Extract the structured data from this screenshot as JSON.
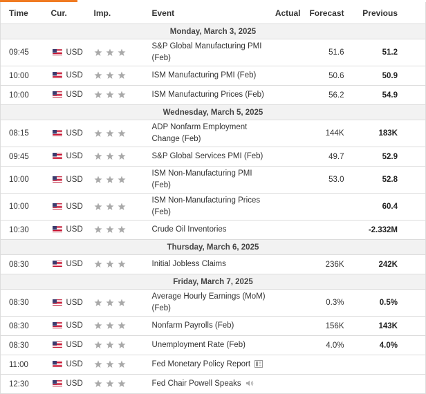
{
  "header": {
    "time": "Time",
    "currency": "Cur.",
    "importance": "Imp.",
    "event": "Event",
    "actual": "Actual",
    "forecast": "Forecast",
    "previous": "Previous"
  },
  "days": [
    {
      "date": "Monday, March 3, 2025",
      "events": [
        {
          "time": "09:45",
          "currency": "USD",
          "event": "S&P Global Manufacturing PMI (Feb)",
          "forecast": "51.6",
          "previous": "51.2"
        },
        {
          "time": "10:00",
          "currency": "USD",
          "event": "ISM Manufacturing PMI (Feb)",
          "forecast": "50.6",
          "previous": "50.9"
        },
        {
          "time": "10:00",
          "currency": "USD",
          "event": "ISM Manufacturing Prices (Feb)",
          "forecast": "56.2",
          "previous": "54.9"
        }
      ]
    },
    {
      "date": "Wednesday, March 5, 2025",
      "events": [
        {
          "time": "08:15",
          "currency": "USD",
          "event": "ADP Nonfarm Employment Change (Feb)",
          "forecast": "144K",
          "previous": "183K"
        },
        {
          "time": "09:45",
          "currency": "USD",
          "event": "S&P Global Services PMI (Feb)",
          "forecast": "49.7",
          "previous": "52.9"
        },
        {
          "time": "10:00",
          "currency": "USD",
          "event": "ISM Non-Manufacturing PMI (Feb)",
          "forecast": "53.0",
          "previous": "52.8"
        },
        {
          "time": "10:00",
          "currency": "USD",
          "event": "ISM Non-Manufacturing Prices (Feb)",
          "previous": "60.4"
        },
        {
          "time": "10:30",
          "currency": "USD",
          "event": "Crude Oil Inventories",
          "previous": "-2.332M"
        }
      ]
    },
    {
      "date": "Thursday, March 6, 2025",
      "events": [
        {
          "time": "08:30",
          "currency": "USD",
          "event": "Initial Jobless Claims",
          "forecast": "236K",
          "previous": "242K"
        }
      ]
    },
    {
      "date": "Friday, March 7, 2025",
      "events": [
        {
          "time": "08:30",
          "currency": "USD",
          "event": "Average Hourly Earnings (MoM) (Feb)",
          "forecast": "0.3%",
          "previous": "0.5%"
        },
        {
          "time": "08:30",
          "currency": "USD",
          "event": "Nonfarm Payrolls (Feb)",
          "forecast": "156K",
          "previous": "143K"
        },
        {
          "time": "08:30",
          "currency": "USD",
          "event": "Unemployment Rate (Feb)",
          "forecast": "4.0%",
          "previous": "4.0%"
        },
        {
          "time": "11:00",
          "currency": "USD",
          "event": "Fed Monetary Policy Report",
          "icon": "report"
        },
        {
          "time": "12:30",
          "currency": "USD",
          "event": "Fed Chair Powell Speaks",
          "icon": "speech"
        }
      ]
    }
  ]
}
